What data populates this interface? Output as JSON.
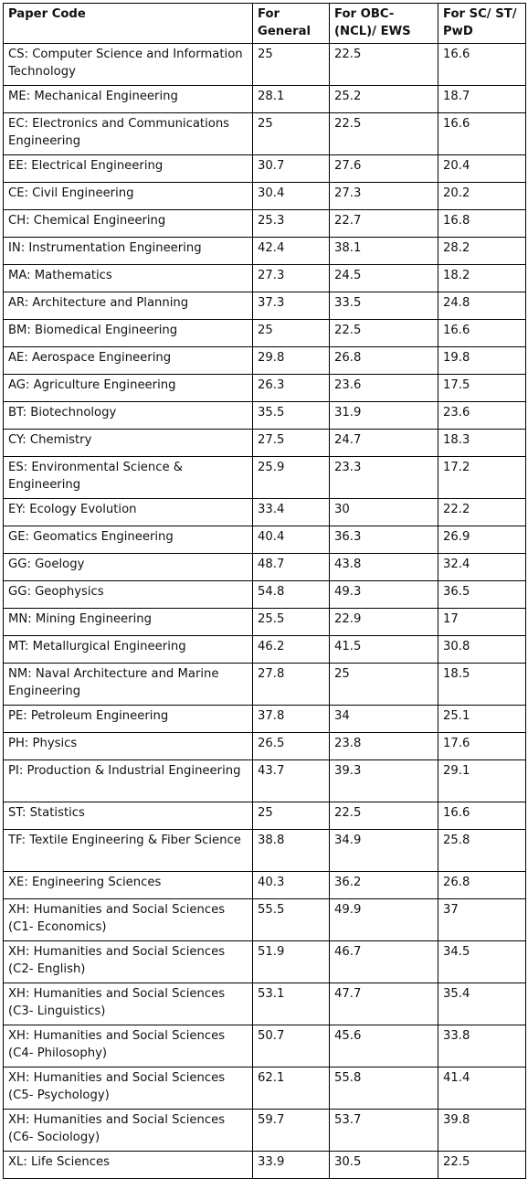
{
  "headers": [
    "Paper Code",
    "For General",
    "For OBC-(NCL)/ EWS",
    "For SC/ ST/ PwD"
  ],
  "rows": [
    [
      "CS: Computer Science and Information Technology",
      "25",
      "22.5",
      "16.6"
    ],
    [
      "ME: Mechanical Engineering",
      "28.1",
      "25.2",
      "18.7"
    ],
    [
      "EC: Electronics and Communications Engineering",
      "25",
      "22.5",
      "16.6"
    ],
    [
      "EE: Electrical Engineering",
      "30.7",
      "27.6",
      "20.4"
    ],
    [
      "CE: Civil Engineering",
      "30.4",
      "27.3",
      "20.2"
    ],
    [
      "CH: Chemical Engineering",
      "25.3",
      "22.7",
      "16.8"
    ],
    [
      "IN: Instrumentation Engineering",
      "42.4",
      "38.1",
      "28.2"
    ],
    [
      "MA: Mathematics",
      "27.3",
      "24.5",
      "18.2"
    ],
    [
      "AR: Architecture and Planning",
      "37.3",
      "33.5",
      "24.8"
    ],
    [
      "BM: Biomedical Engineering",
      "25",
      "22.5",
      "16.6"
    ],
    [
      "AE: Aerospace Engineering",
      "29.8",
      "26.8",
      "19.8"
    ],
    [
      "AG: Agriculture Engineering",
      "26.3",
      "23.6",
      "17.5"
    ],
    [
      "BT: Biotechnology",
      "35.5",
      "31.9",
      "23.6"
    ],
    [
      "CY: Chemistry",
      "27.5",
      "24.7",
      "18.3"
    ],
    [
      "ES: Environmental Science & Engineering",
      "25.9",
      "23.3",
      "17.2"
    ],
    [
      "EY: Ecology Evolution",
      "33.4",
      "30",
      "22.2"
    ],
    [
      "GE: Geomatics Engineering",
      "40.4",
      "36.3",
      "26.9"
    ],
    [
      "GG: Goelogy",
      "48.7",
      "43.8",
      "32.4"
    ],
    [
      "GG: Geophysics",
      "54.8",
      "49.3",
      "36.5"
    ],
    [
      "MN: Mining Engineering",
      "25.5",
      "22.9",
      "17"
    ],
    [
      "MT: Metallurgical Engineering",
      "46.2",
      "41.5",
      "30.8"
    ],
    [
      "NM: Naval Architecture and Marine Engineering",
      "27.8",
      "25",
      "18.5"
    ],
    [
      "PE: Petroleum Engineering",
      "37.8",
      "34",
      "25.1"
    ],
    [
      "PH: Physics",
      "26.5",
      "23.8",
      "17.6"
    ],
    [
      "PI: Production & Industrial Engineering",
      "43.7",
      "39.3",
      "29.1"
    ],
    [
      "ST: Statistics",
      "25",
      "22.5",
      "16.6"
    ],
    [
      "TF: Textile Engineering & Fiber Science",
      "38.8",
      "34.9",
      "25.8"
    ],
    [
      "XE: Engineering Sciences",
      "40.3",
      "36.2",
      "26.8"
    ],
    [
      "XH: Humanities and Social Sciences (C1- Economics)",
      "55.5",
      "49.9",
      "37"
    ],
    [
      "XH: Humanities and Social Sciences (C2- English)",
      "51.9",
      "46.7",
      "34.5"
    ],
    [
      "XH: Humanities and Social Sciences (C3- Linguistics)",
      "53.1",
      "47.7",
      "35.4"
    ],
    [
      "XH: Humanities and Social Sciences (C4- Philosophy)",
      "50.7",
      "45.6",
      "33.8"
    ],
    [
      "XH: Humanities and Social Sciences (C5- Psychology)",
      "62.1",
      "55.8",
      "41.4"
    ],
    [
      "XH: Humanities and Social Sciences (C6- Sociology)",
      "59.7",
      "53.7",
      "39.8"
    ],
    [
      "XL: Life Sciences",
      "33.9",
      "30.5",
      "22.5"
    ]
  ]
}
